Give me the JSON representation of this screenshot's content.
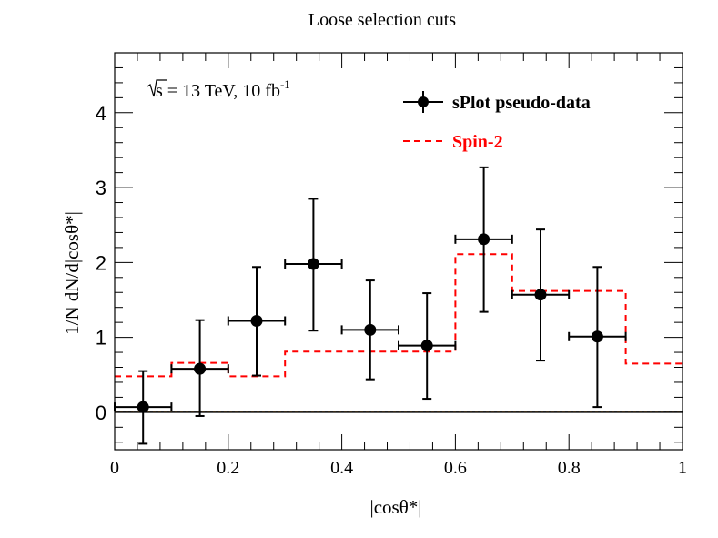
{
  "chart_data": {
    "type": "scatter",
    "title": "Loose selection cuts",
    "xlabel": "|cosθ*|",
    "ylabel": "1/N dN/d|cosθ*|",
    "xlim": [
      0,
      1
    ],
    "ylim": [
      -0.5,
      4.8
    ],
    "x_ticks": [
      0,
      0.2,
      0.4,
      0.6,
      0.8,
      1
    ],
    "x_tick_labels": [
      "0",
      "0.2",
      "0.4",
      "0.6",
      "0.8",
      "1"
    ],
    "y_ticks": [
      0,
      1,
      2,
      3,
      4
    ],
    "y_tick_labels": [
      "0",
      "1",
      "2",
      "3",
      "4"
    ],
    "annotation": {
      "sqrt_s": "s",
      "text": " = 13 TeV, 10 fb",
      "superscript": "-1"
    },
    "legend": {
      "placement": "top-right",
      "entries": [
        {
          "label": "sPlot pseudo-data",
          "color": "#000000",
          "style": "marker-errorbar"
        },
        {
          "label": "Spin-2",
          "color": "#ff0000",
          "style": "dashed"
        }
      ]
    },
    "series": [
      {
        "name": "sPlot pseudo-data",
        "kind": "points",
        "color": "#000000",
        "x": [
          0.05,
          0.15,
          0.25,
          0.35,
          0.45,
          0.55,
          0.65,
          0.75,
          0.85
        ],
        "y": [
          0.07,
          0.58,
          1.22,
          1.98,
          1.1,
          0.89,
          2.31,
          1.57,
          1.01
        ],
        "xerr": [
          0.05,
          0.05,
          0.05,
          0.05,
          0.05,
          0.05,
          0.05,
          0.05,
          0.05
        ],
        "yerr_low": [
          0.49,
          0.63,
          0.73,
          0.89,
          0.66,
          0.71,
          0.97,
          0.88,
          0.94
        ],
        "yerr_high": [
          0.48,
          0.65,
          0.72,
          0.87,
          0.66,
          0.7,
          0.96,
          0.87,
          0.93
        ]
      },
      {
        "name": "Spin-2",
        "kind": "step",
        "color": "#ff0000",
        "bin_edges": [
          0,
          0.1,
          0.2,
          0.3,
          0.4,
          0.5,
          0.6,
          0.7,
          0.8,
          0.9,
          1.0
        ],
        "values": [
          0.48,
          0.66,
          0.48,
          0.81,
          0.81,
          0.81,
          2.11,
          1.62,
          1.62,
          0.65
        ]
      },
      {
        "name": "zero-line",
        "kind": "hline",
        "color": "#000000",
        "y": 0
      }
    ]
  }
}
